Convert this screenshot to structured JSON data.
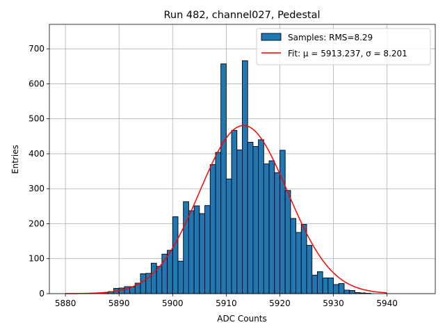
{
  "chart_data": {
    "type": "bar",
    "title": "Run 482, channel027, Pedestal",
    "xlabel": "ADC Counts",
    "ylabel": "Entries",
    "xlim": [
      5877,
      5949
    ],
    "ylim": [
      0,
      770
    ],
    "xticks": [
      5880,
      5890,
      5900,
      5910,
      5920,
      5930,
      5940
    ],
    "yticks": [
      0,
      100,
      200,
      300,
      400,
      500,
      600,
      700
    ],
    "grid": true,
    "legend_position": "top-right",
    "colors": {
      "bars": "#1f77b4",
      "fit": "#ff0000",
      "edge": "#000000"
    },
    "histogram": {
      "name": "Samples: RMS=8.29",
      "bin_edges_start": 5880,
      "bin_width": 1,
      "counts": [
        0,
        0,
        0,
        0,
        0,
        0,
        0,
        3,
        6,
        15,
        16,
        20,
        20,
        30,
        57,
        58,
        87,
        78,
        113,
        124,
        220,
        93,
        263,
        237,
        251,
        229,
        252,
        369,
        404,
        657,
        328,
        467,
        411,
        666,
        433,
        421,
        440,
        371,
        380,
        346,
        410,
        295,
        215,
        175,
        198,
        138,
        53,
        63,
        45,
        45,
        26,
        29,
        10,
        9,
        3,
        2,
        1,
        0,
        0,
        0
      ]
    },
    "fit": {
      "name": "Fit: μ = 5913.237, σ = 8.201",
      "mu": 5913.237,
      "sigma": 8.201,
      "amplitude": 481,
      "x_range": [
        5880,
        5940
      ]
    }
  }
}
